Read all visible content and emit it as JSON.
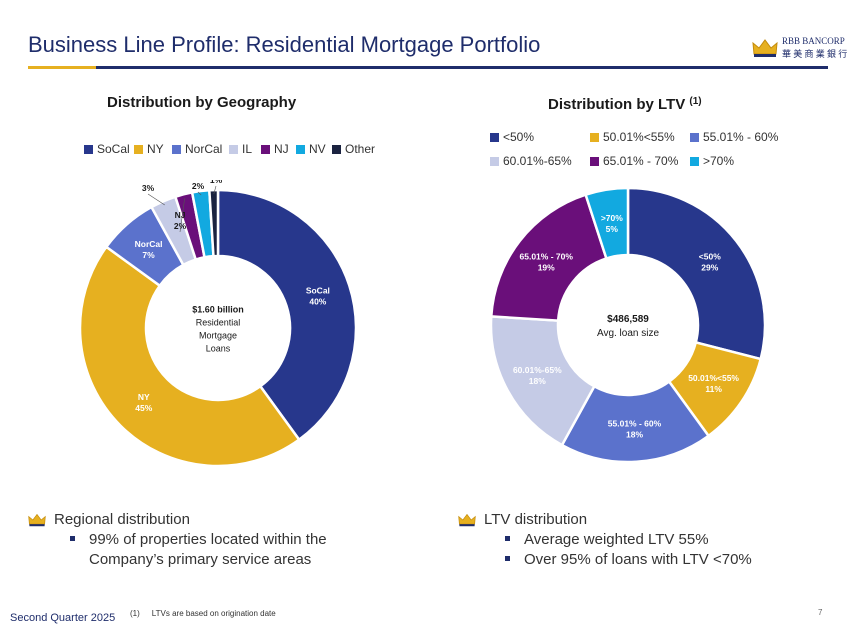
{
  "header": {
    "title": "Business Line Profile: Residential Mortgage Portfolio",
    "logo_name": "RBB BANCORP",
    "logo_sub": "華 美 商 業 銀 行"
  },
  "colors": {
    "navy": "#1f2d6b",
    "gold": "#e6b020"
  },
  "chart_data": [
    {
      "type": "pie",
      "title": "Distribution by Geography",
      "center_text": [
        "$1.60 billion",
        "Residential",
        "Mortgage",
        "Loans"
      ],
      "categories": [
        "SoCal",
        "NY",
        "NorCal",
        "IL",
        "NJ",
        "NV",
        "Other"
      ],
      "values": [
        40,
        45,
        7,
        3,
        2,
        2,
        1
      ],
      "labels": [
        "40%",
        "45%",
        "7%",
        "3%",
        "2%",
        "2%",
        "1%"
      ],
      "colors": [
        "#27378c",
        "#e6b020",
        "#5b72cc",
        "#c5cbe6",
        "#6a0f7a",
        "#12a9e0",
        "#1b2340"
      ],
      "legend_position": "top"
    },
    {
      "type": "pie",
      "title": "Distribution by LTV",
      "title_sup": "(1)",
      "center_text": [
        "$486,589",
        "Avg. loan size"
      ],
      "categories": [
        "<50%",
        "50.01%<55%",
        "55.01% - 60%",
        "60.01%-65%",
        "65.01% - 70%",
        ">70%"
      ],
      "values": [
        29,
        11,
        18,
        18,
        19,
        5
      ],
      "labels": [
        "29%",
        "11%",
        "18%",
        "18%",
        "19%",
        "5%"
      ],
      "colors": [
        "#27378c",
        "#e6b020",
        "#5b72cc",
        "#c5cbe6",
        "#6a0f7a",
        "#12a9e0"
      ],
      "legend_position": "top"
    }
  ],
  "bullets_left": {
    "head": "Regional distribution",
    "items": [
      "99% of properties located within the",
      "Company’s primary service areas"
    ]
  },
  "bullets_right": {
    "head": "LTV distribution",
    "items": [
      "Average weighted LTV 55%",
      "Over 95% of loans with LTV <70%"
    ]
  },
  "footer": {
    "left": "Second Quarter 2025",
    "footnote_num": "(1)",
    "footnote_text": "LTVs are based on origination date",
    "page": "7"
  }
}
